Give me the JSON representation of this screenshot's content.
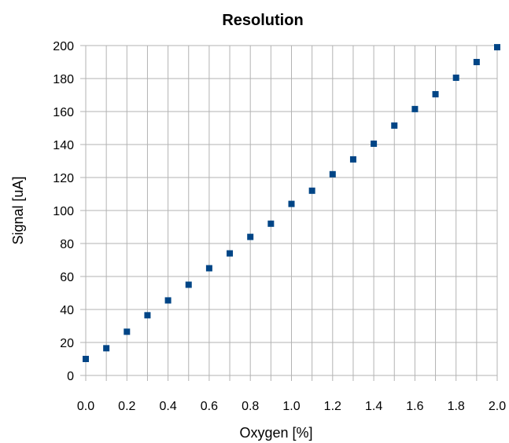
{
  "chart_data": {
    "type": "scatter",
    "title": "Resolution",
    "xlabel": "Oxygen [%]",
    "ylabel": "Signal [uA]",
    "xlim": [
      0,
      2
    ],
    "ylim": [
      0,
      200
    ],
    "grid": true,
    "legend": "none",
    "marker_color": "#004586",
    "x_ticks": [
      "0.0",
      "0.2",
      "0.4",
      "0.6",
      "0.8",
      "1.0",
      "1.2",
      "1.4",
      "1.6",
      "1.8",
      "2.0"
    ],
    "y_ticks": [
      "0",
      "20",
      "40",
      "60",
      "80",
      "100",
      "120",
      "140",
      "160",
      "180",
      "200"
    ],
    "series": [
      {
        "x": [
          0.0,
          0.1,
          0.2,
          0.3,
          0.4,
          0.5,
          0.6,
          0.7,
          0.8,
          0.9,
          1.0,
          1.1,
          1.2,
          1.3,
          1.4,
          1.5,
          1.6,
          1.7,
          1.8,
          1.9,
          2.0
        ],
        "y": [
          10,
          16.5,
          26.5,
          36.5,
          45.5,
          55,
          65,
          74,
          84,
          92,
          104,
          112,
          122,
          131,
          140.5,
          151.5,
          161.5,
          170.5,
          180.5,
          190,
          199
        ]
      }
    ]
  }
}
